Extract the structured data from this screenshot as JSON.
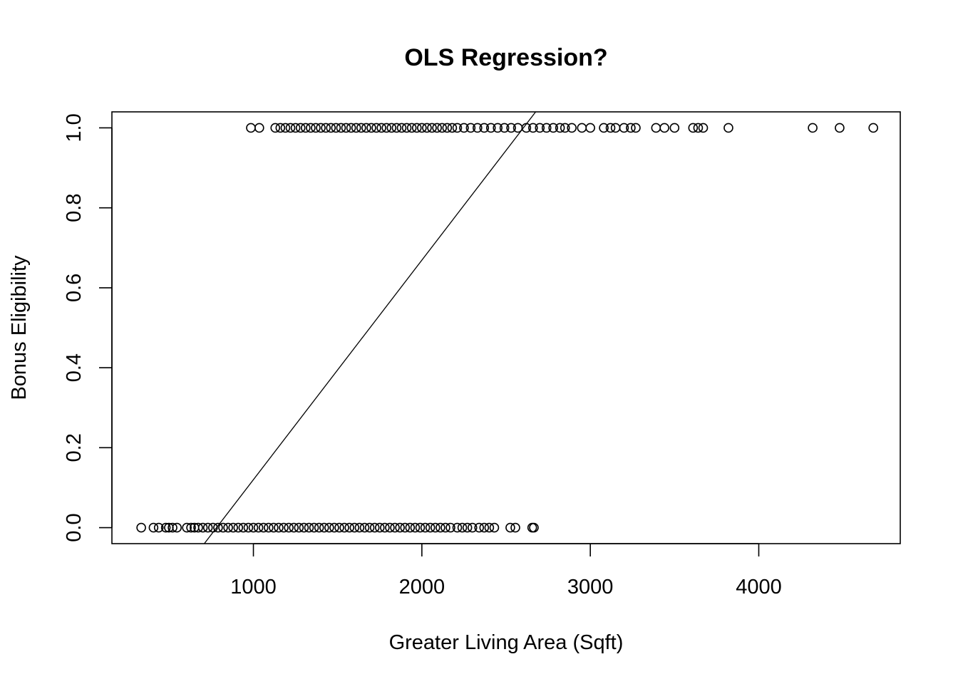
{
  "chart_data": {
    "type": "scatter",
    "title": "OLS Regression?",
    "xlabel": "Greater Living Area (Sqft)",
    "ylabel": "Bonus Eligibility",
    "xlim": [
      160,
      4840
    ],
    "ylim": [
      -0.04,
      1.04
    ],
    "x_ticks": [
      1000,
      2000,
      3000,
      4000
    ],
    "y_ticks": [
      0.0,
      0.2,
      0.4,
      0.6,
      0.8,
      1.0
    ],
    "x_tick_labels": [
      "1000",
      "2000",
      "3000",
      "4000"
    ],
    "y_tick_labels": [
      "0.0",
      "0.2",
      "0.4",
      "0.6",
      "0.8",
      "1.0"
    ],
    "grid": false,
    "marker": "open-circle",
    "series": [
      {
        "y": 0,
        "x": [
          334,
          407,
          438,
          480,
          498,
          520,
          546,
          605,
          630,
          650,
          672,
          700,
          730,
          760,
          790,
          820,
          850,
          880,
          910,
          940,
          970,
          1000,
          1030,
          1060,
          1090,
          1120,
          1150,
          1180,
          1210,
          1240,
          1270,
          1300,
          1330,
          1360,
          1390,
          1420,
          1450,
          1480,
          1510,
          1540,
          1570,
          1600,
          1630,
          1660,
          1690,
          1720,
          1750,
          1780,
          1810,
          1840,
          1870,
          1900,
          1930,
          1960,
          1990,
          2020,
          2050,
          2080,
          2110,
          2140,
          2170,
          2210,
          2240,
          2270,
          2300,
          2340,
          2370,
          2400,
          2430,
          2525,
          2555,
          2655,
          2665
        ]
      },
      {
        "y": 1,
        "x": [
          985,
          1035,
          1130,
          1160,
          1190,
          1220,
          1250,
          1280,
          1310,
          1340,
          1370,
          1400,
          1430,
          1460,
          1490,
          1520,
          1550,
          1580,
          1610,
          1640,
          1670,
          1700,
          1730,
          1760,
          1790,
          1820,
          1850,
          1880,
          1910,
          1940,
          1970,
          2000,
          2030,
          2060,
          2090,
          2120,
          2150,
          2180,
          2210,
          2250,
          2290,
          2330,
          2370,
          2410,
          2450,
          2490,
          2530,
          2570,
          2620,
          2660,
          2700,
          2740,
          2780,
          2820,
          2850,
          2890,
          2950,
          3000,
          3080,
          3120,
          3150,
          3200,
          3240,
          3270,
          3390,
          3440,
          3500,
          3610,
          3640,
          3670,
          3820,
          4320,
          4480,
          4680
        ]
      }
    ],
    "fit_line": {
      "intercept": -0.4289,
      "slope": 0.000549
    }
  }
}
